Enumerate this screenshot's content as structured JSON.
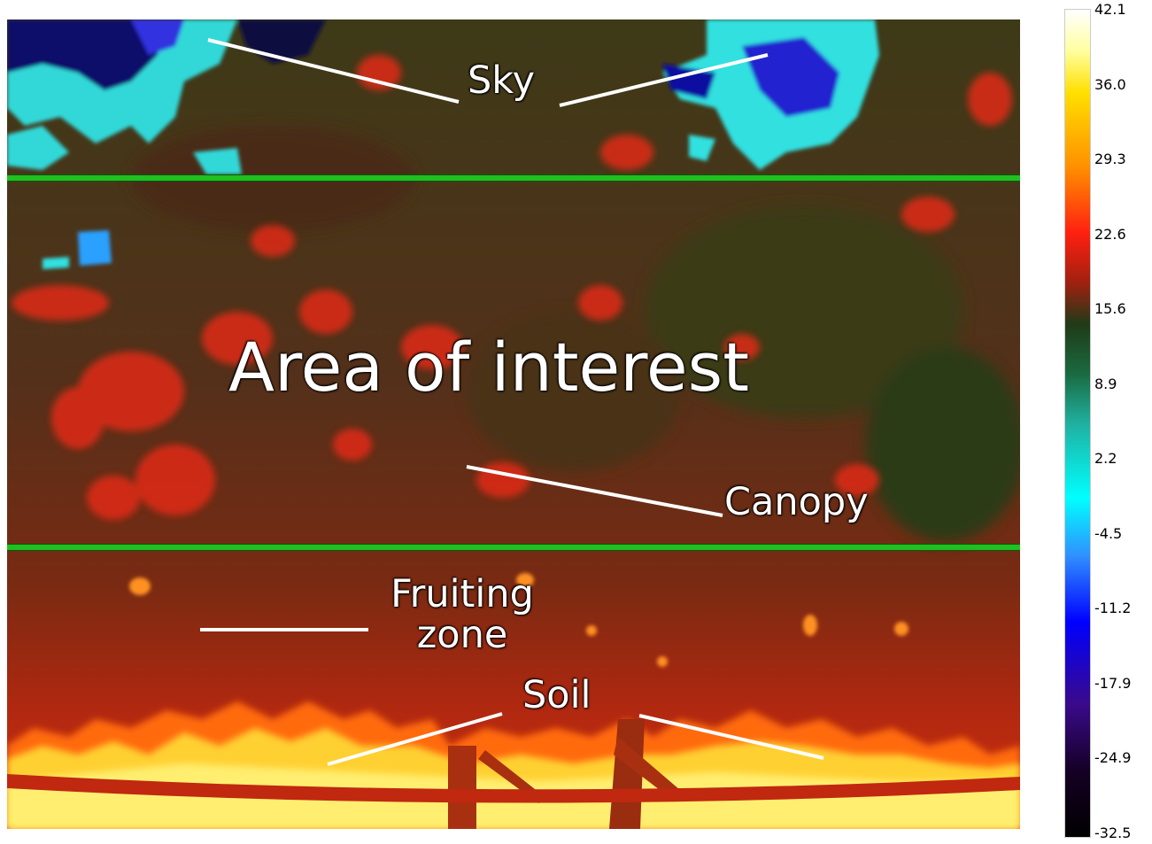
{
  "image": {
    "description_free": true
  },
  "labels": {
    "sky": "Sky",
    "area_of_interest": "Area of interest",
    "canopy": "Canopy",
    "fruiting_zone": "Fruiting zone",
    "soil": "Soil"
  },
  "colorbar": {
    "ticks": [
      "42.1",
      "36.0",
      "29.3",
      "22.6",
      "15.6",
      "8.9",
      "2.2",
      "-4.5",
      "-11.2",
      "-17.9",
      "-24.9",
      "-32.5"
    ],
    "max": 42.1,
    "min": -32.5
  },
  "colors": {
    "band": "#1fc01f",
    "canopy_dark": "#3a2a10",
    "canopy_red": "#e02010",
    "sky_cyan": "#40e0e0",
    "sky_blue": "#1010d0",
    "soil_yellow": "#ffe860",
    "soil_orange": "#ff8000"
  }
}
